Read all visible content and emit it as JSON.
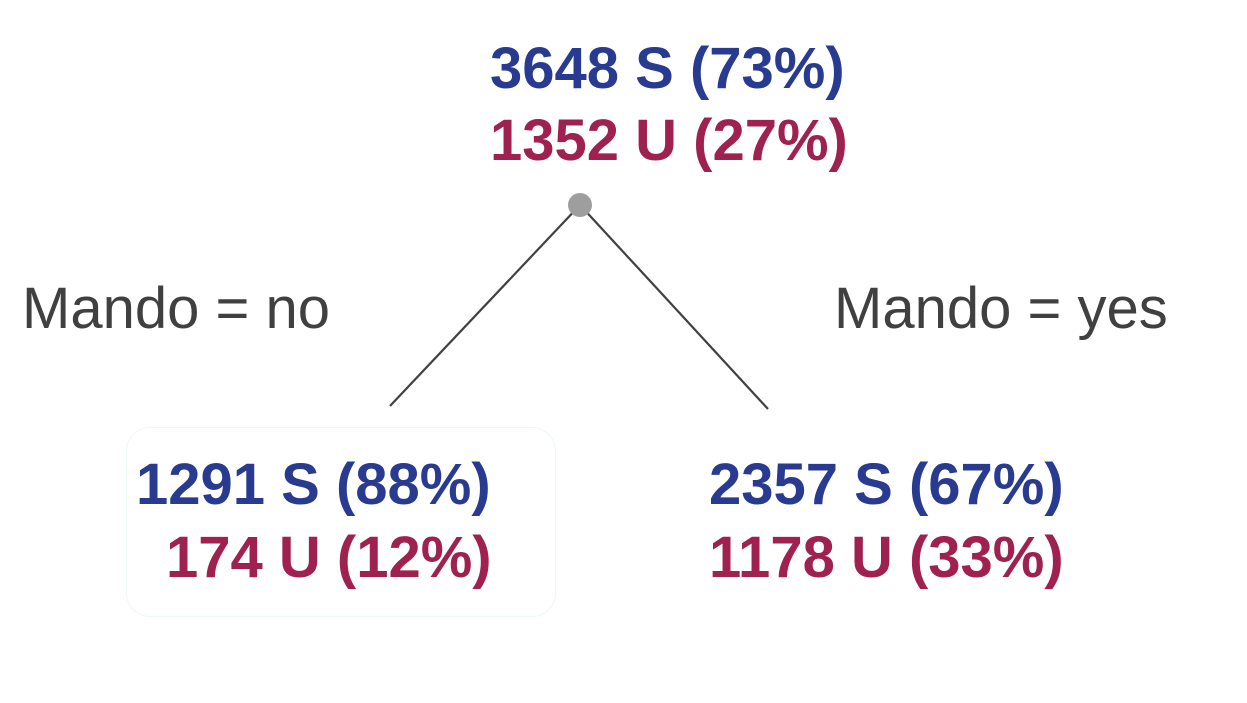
{
  "root": {
    "s_text": "3648 S (73%)",
    "u_text": "1352 U (27%)"
  },
  "left_branch": {
    "label": "Mando = no",
    "s_text": "1291 S (88%)",
    "u_text": "174 U (12%)"
  },
  "right_branch": {
    "label": "Mando = yes",
    "s_text": "2357 S (67%)",
    "u_text": "1178 U (33%)"
  },
  "colors": {
    "s_color": "#283b91",
    "u_color": "#9e214f",
    "label_color": "#404040",
    "edge_color": "#404040",
    "split_dot": "#9e9e9e"
  }
}
